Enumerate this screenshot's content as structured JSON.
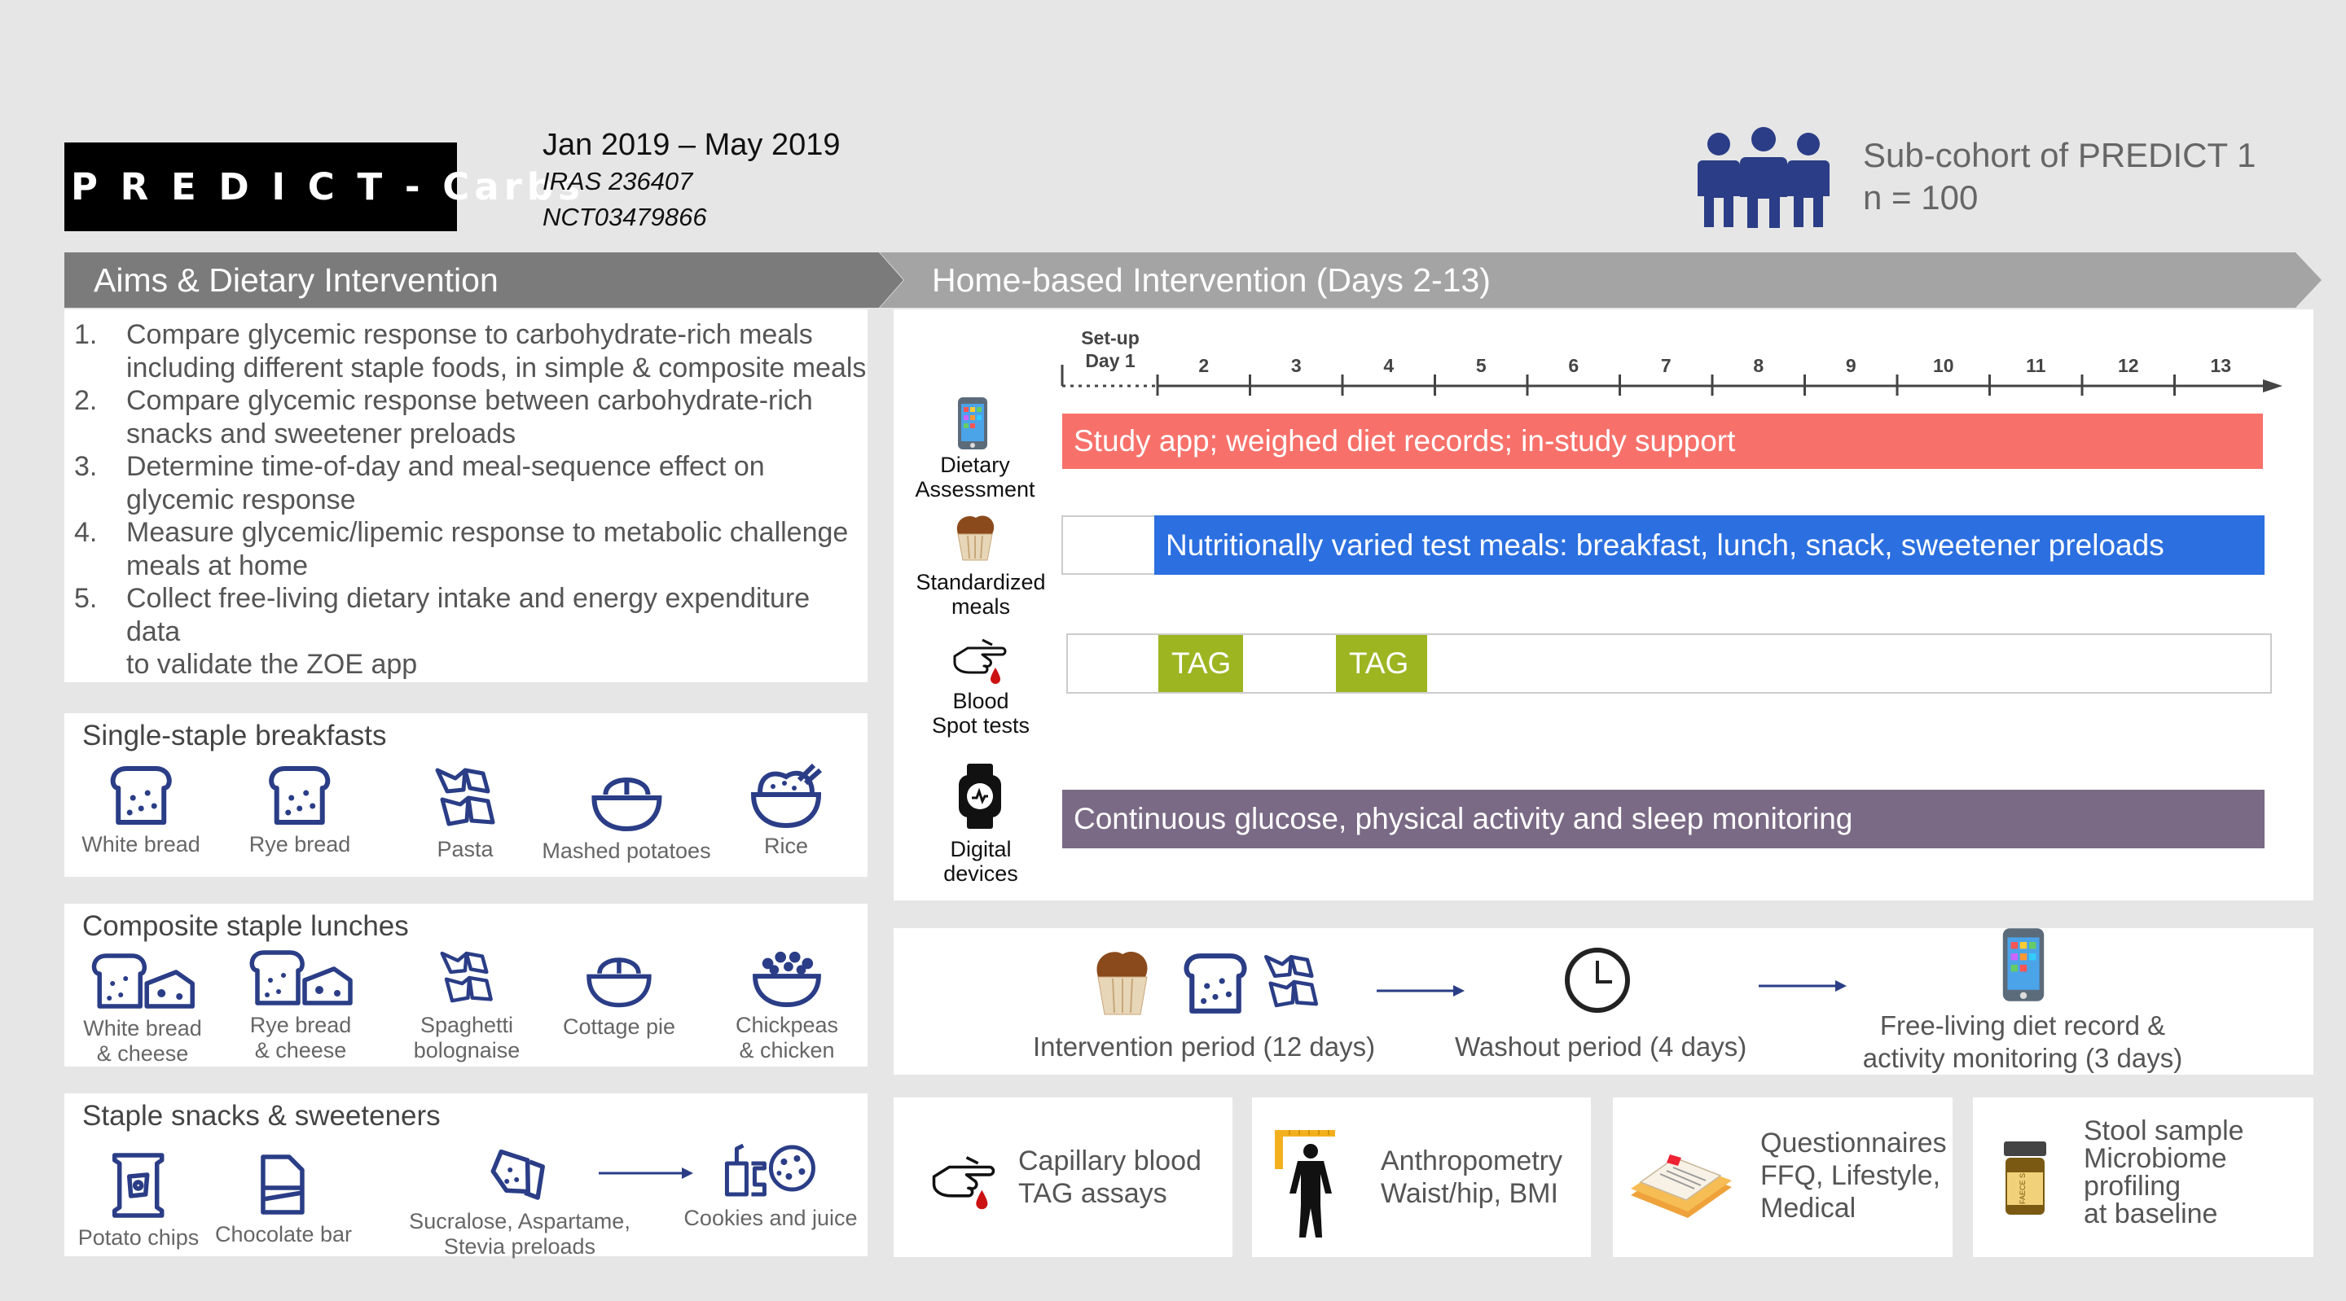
{
  "header": {
    "title": "P R E D I C T - Carbs",
    "dates": "Jan 2019 – May 2019",
    "iras": "IRAS 236407",
    "nct": "NCT03479866",
    "cohort_line1": "Sub-cohort of PREDICT 1",
    "cohort_line2": "n = 100"
  },
  "colors": {
    "accent_red": "#f7716a",
    "accent_blue": "#2b6fe0",
    "accent_green": "#9cb521",
    "accent_purple": "#7a6a85",
    "icon_navy": "#2a3d86",
    "banner_gray": "#808080"
  },
  "aims": {
    "banner": "Aims & Dietary Intervention",
    "items": [
      {
        "num": "1.",
        "line1": "Compare glycemic response to carbohydrate-rich meals",
        "line2": "including different staple foods, in simple & composite meals"
      },
      {
        "num": "2.",
        "line1": "Compare glycemic response between carbohydrate-rich",
        "line2": "snacks and sweetener preloads"
      },
      {
        "num": "3.",
        "line1": "Determine time-of-day and meal-sequence effect on",
        "line2": "glycemic response"
      },
      {
        "num": "4.",
        "line1": "Measure glycemic/lipemic response to metabolic challenge",
        "line2": "meals at home"
      },
      {
        "num": "5.",
        "line1": "Collect free-living dietary intake and energy expenditure data",
        "line2": "to validate the ZOE app"
      }
    ]
  },
  "breakfasts": {
    "title": "Single-staple breakfasts",
    "items": [
      {
        "label": "White bread",
        "icon": "bread-icon"
      },
      {
        "label": "Rye bread",
        "icon": "bread-icon"
      },
      {
        "label": "Pasta",
        "icon": "pasta-icon"
      },
      {
        "label": "Mashed potatoes",
        "icon": "bowl-icon"
      },
      {
        "label": "Rice",
        "icon": "rice-bowl-icon"
      }
    ]
  },
  "lunches": {
    "title": "Composite staple lunches",
    "items": [
      {
        "line1": "White bread",
        "line2": "& cheese",
        "icon": "bread-cheese-icon"
      },
      {
        "line1": "Rye bread",
        "line2": "& cheese",
        "icon": "bread-cheese-icon"
      },
      {
        "line1": "Spaghetti",
        "line2": "bolognaise",
        "icon": "pasta-icon"
      },
      {
        "line1": "Cottage pie",
        "line2": "",
        "icon": "bowl-icon"
      },
      {
        "line1": "Chickpeas",
        "line2": "& chicken",
        "icon": "chickpea-bowl-icon"
      }
    ]
  },
  "snacks": {
    "title": "Staple snacks & sweeteners",
    "items": [
      {
        "line1": "Potato chips",
        "line2": "",
        "icon": "chips-icon"
      },
      {
        "line1": "Chocolate bar",
        "line2": "",
        "icon": "chocolate-icon"
      },
      {
        "line1": "Sucralose, Aspartame,",
        "line2": "Stevia preloads",
        "icon": "sweetener-icon"
      },
      {
        "line1": "Cookies and juice",
        "line2": "",
        "icon": "cookies-juice-icon"
      }
    ]
  },
  "home": {
    "banner": "Home-based Intervention (Days 2-13)",
    "setup_label": "Set-up",
    "day1_label": "Day 1",
    "days": [
      "2",
      "3",
      "4",
      "5",
      "6",
      "7",
      "8",
      "9",
      "10",
      "11",
      "12",
      "13"
    ],
    "rows": [
      {
        "label1": "Dietary",
        "label2": "Assessment",
        "icon": "phone-icon"
      },
      {
        "label1": "Standardized",
        "label2": "meals",
        "icon": "muffin-icon"
      },
      {
        "label1": "Blood",
        "label2": "Spot tests",
        "icon": "finger-prick-icon"
      },
      {
        "label1": "Digital",
        "label2": "devices",
        "icon": "smartwatch-icon"
      }
    ],
    "bars": {
      "app": "Study app; weighed diet records; in-study support",
      "meals": "Nutritionally varied test meals: breakfast, lunch, snack, sweetener preloads",
      "tag1": "TAG",
      "tag2": "TAG",
      "monitoring": "Continuous glucose, physical activity and sleep monitoring"
    }
  },
  "flow": {
    "intervention": "Intervention period (12 days)",
    "washout": "Washout period (4 days)",
    "free_living_1": "Free-living diet record &",
    "free_living_2": "activity monitoring  (3 days)"
  },
  "bottom": {
    "capillary_1": "Capillary blood",
    "capillary_2": "TAG assays",
    "anthro_1": "Anthropometry",
    "anthro_2": "Waist/hip, BMI",
    "quest_1": "Questionnaires",
    "quest_2": "FFQ, Lifestyle,",
    "quest_3": "Medical",
    "stool_1": "Stool sample",
    "stool_2": "Microbiome",
    "stool_3": "profiling",
    "stool_4": "at baseline",
    "stool_jar_label": "FAECE S"
  }
}
